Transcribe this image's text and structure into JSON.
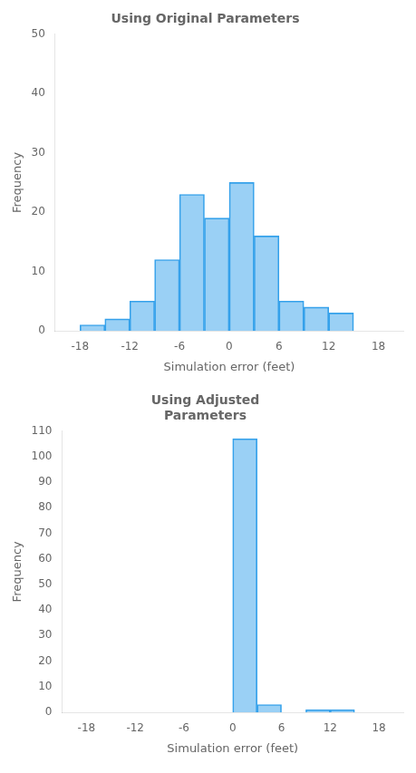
{
  "chart_data": [
    {
      "type": "histogram",
      "title": "Using Original Parameters",
      "xlabel": "Simulation error (feet)",
      "ylabel": "Frequency",
      "bins": [
        -21,
        -18,
        -15,
        -12,
        -9,
        -6,
        -3,
        0,
        3,
        6,
        9,
        12,
        15,
        18,
        21
      ],
      "values": [
        0,
        1,
        2,
        5,
        12,
        23,
        19,
        25,
        16,
        5,
        4,
        3,
        0,
        0
      ],
      "xlim": [
        -21,
        21
      ],
      "xticks": [
        -18,
        -12,
        -6,
        0,
        6,
        12,
        18
      ],
      "ylim": [
        0,
        50
      ],
      "yticks": [
        0,
        10,
        20,
        30,
        40,
        50
      ],
      "grid": false
    },
    {
      "type": "histogram",
      "title": "Using Adjusted\nParameters",
      "xlabel": "Simulation error (feet)",
      "ylabel": "Frequency",
      "bins": [
        -21,
        -18,
        -15,
        -12,
        -9,
        -6,
        -3,
        0,
        3,
        6,
        9,
        12,
        15,
        18,
        21
      ],
      "values": [
        0,
        0,
        0,
        0,
        0,
        0,
        0,
        107,
        3,
        0,
        1,
        1,
        0,
        0
      ],
      "xlim": [
        -21,
        21
      ],
      "xticks": [
        -18,
        -12,
        -6,
        0,
        6,
        12,
        18
      ],
      "ylim": [
        0,
        110
      ],
      "yticks": [
        0,
        10,
        20,
        30,
        40,
        50,
        60,
        70,
        80,
        90,
        100,
        110
      ],
      "grid": false
    }
  ]
}
